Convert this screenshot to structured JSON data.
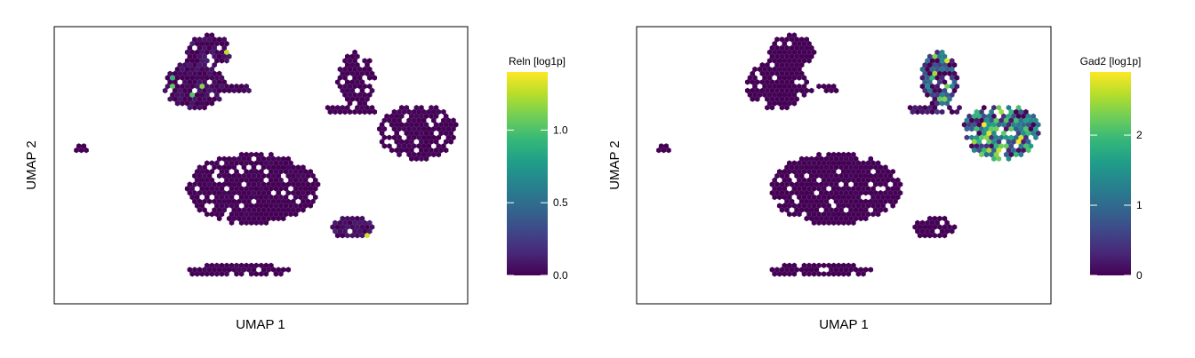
{
  "colors": {
    "viridis": [
      "#440154",
      "#482878",
      "#3e4989",
      "#31688e",
      "#26828e",
      "#1f9e89",
      "#35b779",
      "#6ece58",
      "#b5de2b",
      "#fde725"
    ]
  },
  "chart_data": [
    {
      "type": "heatmap",
      "subtype": "hexbin-embedding",
      "xlabel": "UMAP 1",
      "ylabel": "UMAP 2",
      "grid": false,
      "colorbar": {
        "title": "Reln [log1p]",
        "min": 0.0,
        "max": 1.4,
        "ticks": [
          0.0,
          0.5,
          1.0
        ],
        "tick_labels": [
          "0.0",
          "0.5",
          "1.0"
        ],
        "colormap": "viridis"
      },
      "clusters": [
        {
          "cx": 0.375,
          "cy": 0.09,
          "rx": 0.058,
          "ry": 0.06,
          "base": 0.02,
          "spread": 0.1,
          "hot": 0.06
        },
        {
          "cx": 0.34,
          "cy": 0.21,
          "rx": 0.075,
          "ry": 0.09,
          "base": 0.02,
          "spread": 0.08,
          "hot": 0.03
        },
        {
          "cx": 0.445,
          "cy": 0.225,
          "rx": 0.045,
          "ry": 0.02,
          "base": 0.02,
          "spread": 0.05,
          "hot": 0.08
        },
        {
          "cx": 0.065,
          "cy": 0.44,
          "rx": 0.018,
          "ry": 0.018,
          "base": 0.0,
          "spread": 0.0,
          "hot": 0.0
        },
        {
          "cx": 0.48,
          "cy": 0.585,
          "rx": 0.16,
          "ry": 0.13,
          "base": 0.0,
          "spread": 0.03,
          "hot": 0.0
        },
        {
          "cx": 0.73,
          "cy": 0.19,
          "rx": 0.045,
          "ry": 0.1,
          "base": 0.0,
          "spread": 0.03,
          "hot": 0.0
        },
        {
          "cx": 0.72,
          "cy": 0.3,
          "rx": 0.07,
          "ry": 0.015,
          "base": 0.0,
          "spread": 0.03,
          "hot": 0.0
        },
        {
          "cx": 0.88,
          "cy": 0.38,
          "rx": 0.095,
          "ry": 0.1,
          "base": 0.0,
          "spread": 0.03,
          "hot": 0.0
        },
        {
          "cx": 0.72,
          "cy": 0.725,
          "rx": 0.055,
          "ry": 0.04,
          "base": 0.05,
          "spread": 0.08,
          "hot": 0.04
        },
        {
          "cx": 0.44,
          "cy": 0.88,
          "rx": 0.13,
          "ry": 0.025,
          "base": 0.0,
          "spread": 0.03,
          "hot": 0.0
        }
      ]
    },
    {
      "type": "heatmap",
      "subtype": "hexbin-embedding",
      "xlabel": "UMAP 1",
      "ylabel": "UMAP 2",
      "grid": false,
      "colorbar": {
        "title": "Gad2 [log1p]",
        "min": 0,
        "max": 2.9,
        "ticks": [
          0,
          1,
          2
        ],
        "tick_labels": [
          "0",
          "1",
          "2"
        ],
        "colormap": "viridis"
      },
      "clusters": [
        {
          "cx": 0.375,
          "cy": 0.09,
          "rx": 0.058,
          "ry": 0.06,
          "base": 0.0,
          "spread": 0.03,
          "hot": 0.0
        },
        {
          "cx": 0.34,
          "cy": 0.21,
          "rx": 0.075,
          "ry": 0.09,
          "base": 0.0,
          "spread": 0.03,
          "hot": 0.0
        },
        {
          "cx": 0.445,
          "cy": 0.225,
          "rx": 0.045,
          "ry": 0.02,
          "base": 0.0,
          "spread": 0.03,
          "hot": 0.0
        },
        {
          "cx": 0.065,
          "cy": 0.44,
          "rx": 0.018,
          "ry": 0.018,
          "base": 0.0,
          "spread": 0.0,
          "hot": 0.0
        },
        {
          "cx": 0.48,
          "cy": 0.585,
          "rx": 0.16,
          "ry": 0.13,
          "base": 0.0,
          "spread": 0.03,
          "hot": 0.0
        },
        {
          "cx": 0.73,
          "cy": 0.19,
          "rx": 0.045,
          "ry": 0.1,
          "base": 0.55,
          "spread": 0.9,
          "hot": 0.06
        },
        {
          "cx": 0.72,
          "cy": 0.3,
          "rx": 0.07,
          "ry": 0.015,
          "base": 0.1,
          "spread": 0.4,
          "hot": 0.0
        },
        {
          "cx": 0.88,
          "cy": 0.38,
          "rx": 0.095,
          "ry": 0.1,
          "base": 1.1,
          "spread": 1.2,
          "hot": 0.1
        },
        {
          "cx": 0.72,
          "cy": 0.725,
          "rx": 0.055,
          "ry": 0.04,
          "base": 0.0,
          "spread": 0.03,
          "hot": 0.0
        },
        {
          "cx": 0.44,
          "cy": 0.88,
          "rx": 0.13,
          "ry": 0.025,
          "base": 0.0,
          "spread": 0.03,
          "hot": 0.0
        }
      ]
    }
  ]
}
